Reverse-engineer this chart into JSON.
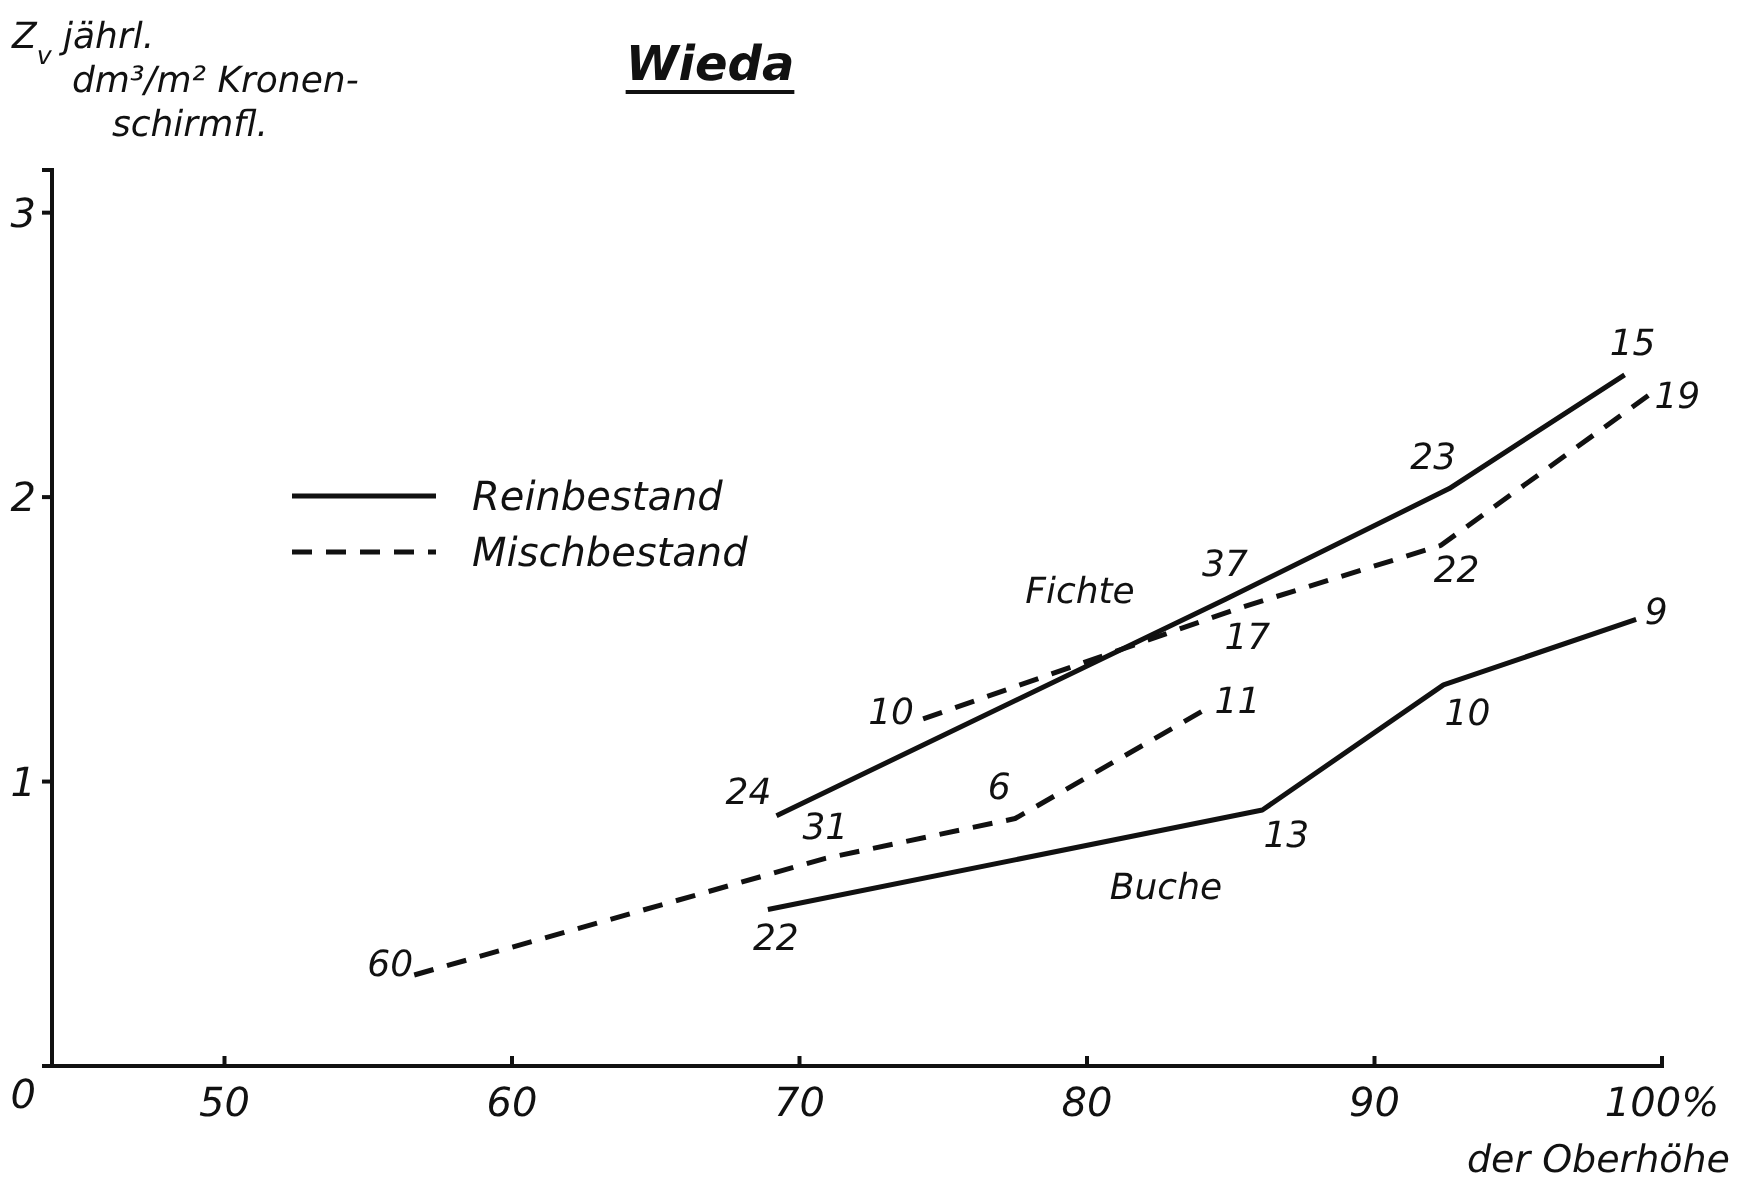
{
  "chart_data": {
    "type": "line",
    "title": "Wieda",
    "xlabel": "der Oberhöhe",
    "ylabel": "Z$_{v}$ jährl.\ndm³/m² Kronen-\nschirmfl.",
    "xlim": [
      44,
      100
    ],
    "xticks": [
      50,
      60,
      70,
      80,
      90,
      {
        "value": 100,
        "label": "100%"
      }
    ],
    "ylim": [
      0,
      3.15
    ],
    "yticks": [
      0,
      1,
      2,
      3
    ],
    "grid": false,
    "legend": "top left",
    "marker": "none",
    "series": [
      {
        "name": "Reinbestand",
        "color": "#111111",
        "line_style": "solid",
        "x": [
          69.2,
          84.8,
          92.6,
          98.7
        ],
        "values": [
          0.88,
          1.64,
          2.03,
          2.43
        ]
      },
      {
        "name": "Mischbestand",
        "color": "#111111",
        "line_style": "dashed",
        "x": [
          74.3,
          85.3,
          92.3,
          99.7
        ],
        "values": [
          1.22,
          1.61,
          1.83,
          2.37
        ]
      },
      {
        "color": "#111111",
        "line_style": "solid",
        "x": [
          68.9,
          86.1,
          92.4,
          99.1
        ],
        "values": [
          0.55,
          0.9,
          1.34,
          1.57
        ]
      },
      {
        "color": "#111111",
        "line_style": "dashed",
        "x": [
          56.6,
          70.9,
          77.5,
          84.4
        ],
        "values": [
          0.32,
          0.73,
          0.87,
          1.27
        ]
      }
    ],
    "annotations": [
      "Fichte",
      "Buche",
      {
        "text": "24",
        "x": 69.2,
        "y": 0.88
      },
      {
        "text": "10",
        "x": 74.3,
        "y": 1.22
      },
      {
        "text": "37",
        "x": 84.8,
        "y": 1.64
      },
      {
        "text": "17",
        "x": 85.3,
        "y": 1.61
      },
      {
        "text": "23",
        "x": 92.6,
        "y": 2.03
      },
      {
        "text": "22",
        "x": 92.3,
        "y": 1.83
      },
      {
        "text": "15",
        "x": 98.7,
        "y": 2.43
      },
      {
        "text": "19",
        "x": 99.7,
        "y": 2.37
      },
      {
        "text": "9",
        "x": 99.1,
        "y": 1.57
      },
      {
        "text": "10",
        "x": 92.4,
        "y": 1.34
      },
      {
        "text": "13",
        "x": 86.1,
        "y": 0.9
      },
      {
        "text": "22",
        "x": 68.9,
        "y": 0.55
      },
      {
        "text": "60",
        "x": 56.6,
        "y": 0.32
      },
      {
        "text": "31",
        "x": 70.9,
        "y": 0.73
      },
      {
        "text": "6",
        "x": 77.5,
        "y": 0.87
      },
      {
        "text": "11",
        "x": 84.4,
        "y": 1.27
      }
    ]
  }
}
